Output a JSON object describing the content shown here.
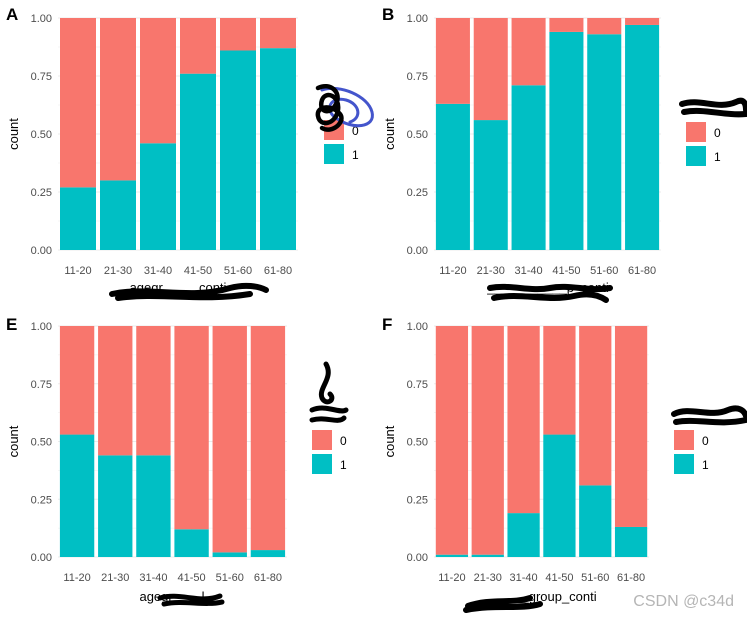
{
  "colors": {
    "series_0": "#F8766D",
    "series_1": "#00BFC4",
    "grid": "#EBEBEB",
    "scribble": "#000000",
    "scribble_blue": "#4455CC"
  },
  "watermark": "CSDN @c34d",
  "chart_data": [
    {
      "panel": "A",
      "type": "bar",
      "stacked": "proportional",
      "title": "A",
      "xlabel": "agegr_____conti",
      "ylabel": "count",
      "ylim": [
        0,
        1
      ],
      "yticks": [
        "0.00",
        "0.25",
        "0.50",
        "0.75",
        "1.00"
      ],
      "categories": [
        "11-20",
        "21-30",
        "31-40",
        "41-50",
        "51-60",
        "61-80"
      ],
      "legend_title": "",
      "legend_position": "right",
      "series": [
        {
          "name": "0",
          "values": [
            0.73,
            0.7,
            0.54,
            0.24,
            0.14,
            0.13
          ]
        },
        {
          "name": "1",
          "values": [
            0.27,
            0.3,
            0.46,
            0.76,
            0.86,
            0.87
          ]
        }
      ]
    },
    {
      "panel": "B",
      "type": "bar",
      "stacked": "proportional",
      "title": "B",
      "xlabel": "___________p_conti",
      "ylabel": "count",
      "ylim": [
        0,
        1
      ],
      "yticks": [
        "0.00",
        "0.25",
        "0.50",
        "0.75",
        "1.00"
      ],
      "categories": [
        "11-20",
        "21-30",
        "31-40",
        "41-50",
        "51-60",
        "61-80"
      ],
      "legend_title": "",
      "legend_position": "right",
      "series": [
        {
          "name": "0",
          "values": [
            0.37,
            0.44,
            0.29,
            0.06,
            0.07,
            0.03
          ]
        },
        {
          "name": "1",
          "values": [
            0.63,
            0.56,
            0.71,
            0.94,
            0.93,
            0.97
          ]
        }
      ]
    },
    {
      "panel": "E",
      "type": "bar",
      "stacked": "proportional",
      "title": "E",
      "xlabel": "agegr____l",
      "ylabel": "count",
      "ylim": [
        0,
        1
      ],
      "yticks": [
        "0.00",
        "0.25",
        "0.50",
        "0.75",
        "1.00"
      ],
      "categories": [
        "11-20",
        "21-30",
        "31-40",
        "41-50",
        "51-60",
        "61-80"
      ],
      "legend_title": "",
      "legend_position": "right",
      "series": [
        {
          "name": "0",
          "values": [
            0.47,
            0.56,
            0.56,
            0.88,
            0.98,
            0.97
          ]
        },
        {
          "name": "1",
          "values": [
            0.53,
            0.44,
            0.44,
            0.12,
            0.02,
            0.03
          ]
        }
      ]
    },
    {
      "panel": "F",
      "type": "bar",
      "stacked": "proportional",
      "title": "F",
      "xlabel": "______group_conti",
      "ylabel": "count",
      "ylim": [
        0,
        1
      ],
      "yticks": [
        "0.00",
        "0.25",
        "0.50",
        "0.75",
        "1.00"
      ],
      "categories": [
        "11-20",
        "21-30",
        "31-40",
        "41-50",
        "51-60",
        "61-80"
      ],
      "legend_title": "",
      "legend_position": "right",
      "series": [
        {
          "name": "0",
          "values": [
            0.99,
            0.99,
            0.81,
            0.47,
            0.69,
            0.87
          ]
        },
        {
          "name": "1",
          "values": [
            0.01,
            0.01,
            0.19,
            0.53,
            0.31,
            0.13
          ]
        }
      ]
    }
  ]
}
